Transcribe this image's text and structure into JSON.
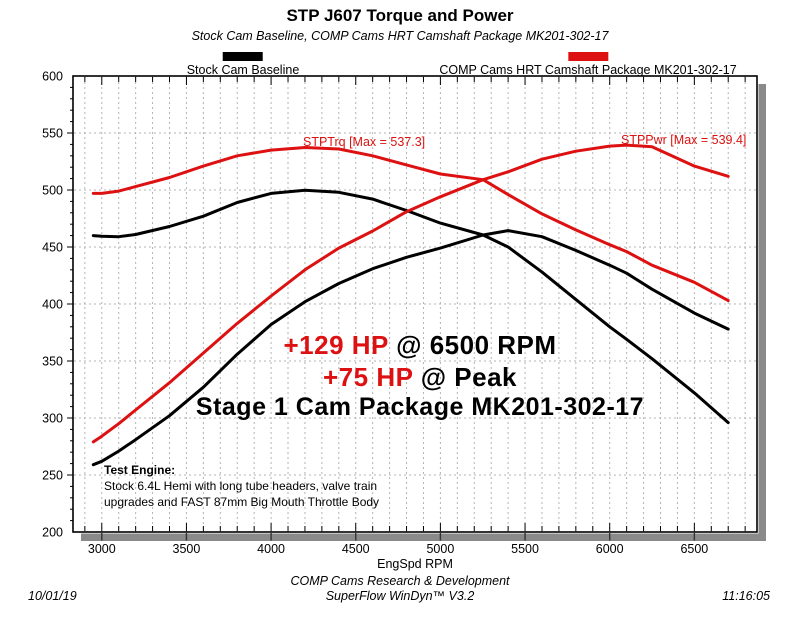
{
  "header": {
    "title": "STP J607 Torque and Power",
    "subtitle": "Stock Cam Baseline, COMP Cams HRT Camshaft Package MK201-302-17"
  },
  "legend": [
    {
      "label": "Stock Cam Baseline",
      "color": "#000000"
    },
    {
      "label": "COMP Cams HRT Camshaft Package MK201-302-17",
      "color": "#dd1111"
    }
  ],
  "curve_labels": {
    "torque_max": "STPTrq [Max = 537.3]",
    "power_max": "STPPwr [Max = 539.4]"
  },
  "annotations": {
    "gain1_red": "+129 HP",
    "gain1_black": " @ 6500 RPM",
    "gain2_red": "+75 HP",
    "gain2_black": " @ Peak",
    "package_line": "Stage 1 Cam Package MK201-302-17"
  },
  "test_engine": {
    "title": "Test Engine:",
    "line1": "Stock 6.4L Hemi with long tube headers, valve train",
    "line2": "upgrades and FAST 87mm Big Mouth Throttle Body"
  },
  "axes": {
    "x_label": "EngSpd RPM",
    "x_ticks": [
      3000,
      3500,
      4000,
      4500,
      5000,
      5500,
      6000,
      6500
    ],
    "y_ticks": [
      600,
      550,
      500,
      450,
      400,
      350,
      300,
      250,
      200
    ],
    "x_range": [
      2830,
      6870
    ],
    "y_range": [
      200,
      600
    ],
    "x_grid_step": 100,
    "y_grid_step": 50,
    "y_minor_step": 10
  },
  "footer": {
    "org_line": "COMP Cams Research & Development",
    "software_line": "SuperFlow WinDyn™ V3.2",
    "date": "10/01/19",
    "time": "11:16:05"
  },
  "colors": {
    "accent_red": "#dd1111",
    "curve_black": "#000000",
    "grid": "#b3b3b3",
    "shadow": "#8a8a8a",
    "frame": "#000000"
  },
  "chart_data": {
    "type": "line",
    "title": "STP J607 Torque and Power",
    "xlabel": "EngSpd RPM",
    "ylabel": "",
    "xlim": [
      2830,
      6870
    ],
    "ylim": [
      200,
      600
    ],
    "grid": true,
    "legend_position": "top",
    "x": [
      2950,
      3000,
      3100,
      3200,
      3400,
      3600,
      3800,
      4000,
      4200,
      4400,
      4600,
      4800,
      5000,
      5252,
      5400,
      5600,
      5800,
      6000,
      6100,
      6250,
      6500,
      6700
    ],
    "series": [
      {
        "name": "Stock Cam Baseline - Torque (lb-ft)",
        "color": "#000000",
        "peak": 500,
        "values": [
          460,
          459.5,
          459,
          461,
          468,
          477,
          489,
          497,
          499.8,
          498,
          492,
          482,
          471,
          460.5,
          450,
          428,
          404,
          380,
          369,
          352,
          322,
          296
        ]
      },
      {
        "name": "Stock Cam Baseline - Power (HP)",
        "color": "#000000",
        "peak": 464.4,
        "values": [
          259,
          262,
          271,
          281,
          302,
          327,
          356,
          382,
          402,
          418,
          431,
          441,
          449,
          460.5,
          464.4,
          459,
          447,
          434,
          427,
          413,
          392,
          378
        ]
      },
      {
        "name": "COMP Cams HRT MK201-302-17 - Torque (STPTrq)",
        "color": "#dd1111",
        "peak": 537.3,
        "values": [
          497,
          497,
          499,
          503,
          511,
          521,
          530,
          535,
          537.3,
          536,
          530,
          522,
          514,
          509,
          496,
          479,
          465,
          452,
          446,
          434,
          419,
          403
        ]
      },
      {
        "name": "COMP Cams HRT MK201-302-17 - Power (STPPwr)",
        "color": "#dd1111",
        "peak": 539.4,
        "values": [
          279,
          284,
          295,
          307,
          331,
          357,
          383,
          407,
          430,
          449,
          464,
          481,
          494,
          509,
          516,
          527,
          534,
          538.5,
          539.4,
          538,
          521,
          512
        ]
      }
    ]
  }
}
